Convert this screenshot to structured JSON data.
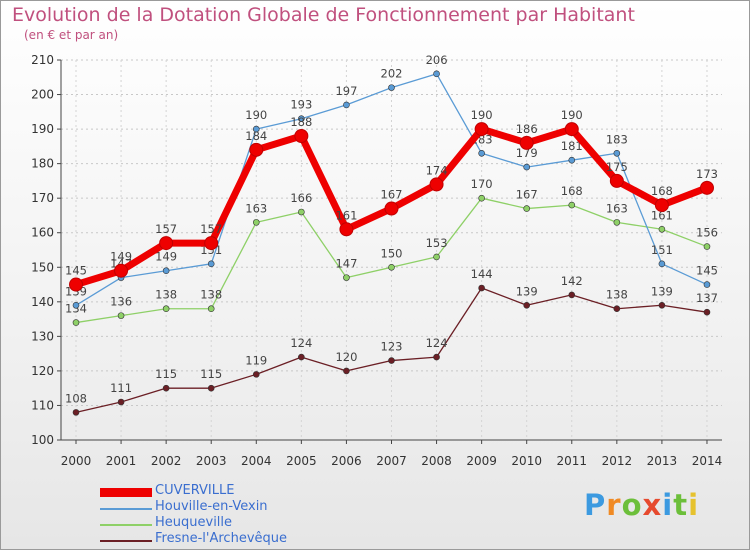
{
  "brand_logo": {
    "text": "Proxiti",
    "colors": [
      "#3c9ae0",
      "#f08a24",
      "#6cbf3a",
      "#e64a2e",
      "#3c9ae0",
      "#6cbf3a",
      "#e6c22e"
    ]
  },
  "chart_data": {
    "type": "line",
    "title": "Evolution de la Dotation Globale de Fonctionnement par Habitant",
    "subtitle": "(en € et par an)",
    "x": [
      "2000",
      "2001",
      "2002",
      "2003",
      "2004",
      "2005",
      "2006",
      "2007",
      "2008",
      "2009",
      "2010",
      "2011",
      "2012",
      "2013",
      "2014"
    ],
    "ylim": [
      100,
      210
    ],
    "yticks": [
      "100",
      "110",
      "120",
      "130",
      "140",
      "150",
      "160",
      "170",
      "180",
      "190",
      "200",
      "210"
    ],
    "grid": true,
    "legend_position": "bottom-left",
    "series": [
      {
        "name": "CUVERVILLE",
        "color": "#ee0000",
        "values": [
          145,
          149,
          157,
          157,
          184,
          188,
          161,
          167,
          174,
          190,
          186,
          190,
          175,
          168,
          173
        ]
      },
      {
        "name": "Houville-en-Vexin",
        "color": "#5a9bd5",
        "values": [
          139,
          147,
          149,
          151,
          190,
          193,
          197,
          202,
          206,
          183,
          179,
          181,
          183,
          151,
          145
        ]
      },
      {
        "name": "Heuqueville",
        "color": "#8ed067",
        "values": [
          134,
          136,
          138,
          138,
          163,
          166,
          147,
          150,
          153,
          170,
          167,
          168,
          163,
          161,
          156
        ]
      },
      {
        "name": "Fresne-l'Archevêque",
        "color": "#6b1f25",
        "values": [
          108,
          111,
          115,
          115,
          119,
          124,
          120,
          123,
          124,
          144,
          139,
          142,
          138,
          139,
          137
        ]
      }
    ]
  }
}
